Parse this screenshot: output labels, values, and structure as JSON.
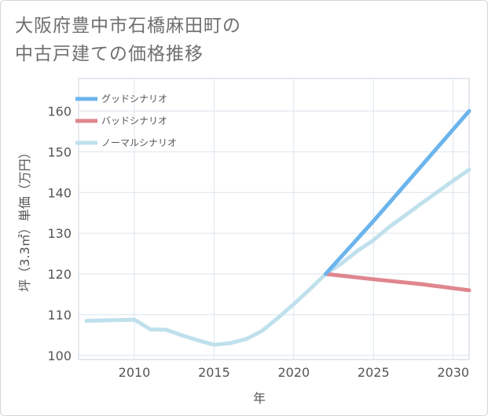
{
  "title_lines": [
    "大阪府豊中市石橋麻田町の",
    "中古戸建ての価格推移"
  ],
  "chart_data": {
    "type": "line",
    "title": "大阪府豊中市石橋麻田町の中古戸建ての価格推移",
    "xlabel": "年",
    "ylabel": "坪（3.3㎡）単価（万円）",
    "xlim": [
      2006.5,
      2031
    ],
    "ylim": [
      99,
      168
    ],
    "xticks": [
      2010,
      2015,
      2020,
      2025,
      2030
    ],
    "yticks": [
      100,
      110,
      120,
      130,
      140,
      150,
      160
    ],
    "grid": true,
    "legend_position": "top-left",
    "series": [
      {
        "name": "グッドシナリオ",
        "color": "#6cb4ec",
        "x": [
          2022,
          2025,
          2031
        ],
        "y": [
          120,
          133,
          160
        ]
      },
      {
        "name": "バッドシナリオ",
        "color": "#e0868f",
        "x": [
          2022,
          2025,
          2028,
          2031
        ],
        "y": [
          120,
          118.7,
          117.5,
          116
        ]
      },
      {
        "name": "ノーマルシナリオ",
        "color": "#bfe0ec",
        "x": [
          2007,
          2008,
          2009,
          2010,
          2011,
          2012,
          2013,
          2014,
          2015,
          2016,
          2017,
          2018,
          2019,
          2020,
          2021,
          2022,
          2023,
          2024,
          2025,
          2026,
          2027,
          2028,
          2029,
          2030,
          2031
        ],
        "y": [
          108.5,
          108.6,
          108.7,
          108.8,
          106.4,
          106.3,
          104.9,
          103.7,
          102.6,
          103.0,
          104.0,
          106.0,
          109.2,
          112.6,
          116.2,
          120.0,
          122.6,
          125.7,
          128.3,
          131.6,
          134.4,
          137.3,
          140.1,
          142.9,
          145.6
        ]
      }
    ]
  }
}
